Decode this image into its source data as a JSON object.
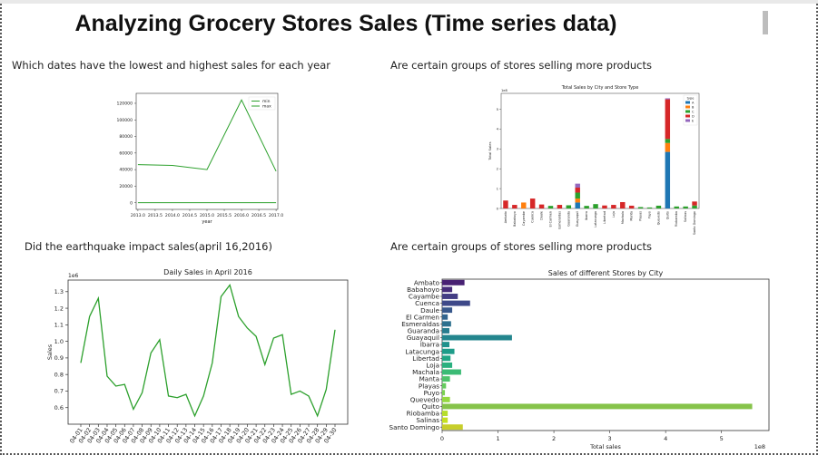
{
  "page": {
    "title": "Analyzing Grocery Stores Sales (Time series data)",
    "headings": {
      "q1": "Which dates have the lowest and highest sales for each year",
      "q2": "Are certain groups of stores selling more products",
      "q3": "Did the earthquake impact sales(april 16,2016)",
      "q4": "Are certain groups of stores selling more products"
    }
  },
  "colors": {
    "line": "#2ca02c",
    "axis": "#333333"
  },
  "chart_data": [
    {
      "id": "minmax",
      "type": "line",
      "title": "",
      "xlabel": "year",
      "ylabel": "",
      "xlim": [
        2012.95,
        2017.05
      ],
      "ylim": [
        -8000,
        132000
      ],
      "xticks": [
        2013.0,
        2013.5,
        2014.0,
        2014.5,
        2015.0,
        2015.5,
        2016.0,
        2016.5,
        2017.0
      ],
      "xtick_labels": [
        "2013.0",
        "2013.5",
        "2014.0",
        "2014.5",
        "2015.0",
        "2015.5",
        "2016.0",
        "2016.5",
        "2017.0"
      ],
      "yticks": [
        0,
        20000,
        40000,
        60000,
        80000,
        100000,
        120000
      ],
      "ytick_labels": [
        "0",
        "20000",
        "40000",
        "60000",
        "80000",
        "100000",
        "120000"
      ],
      "legend": "top-right",
      "series": [
        {
          "name": "min",
          "x": [
            2013,
            2014,
            2015,
            2016,
            2017
          ],
          "values": [
            0,
            0,
            0,
            0,
            0
          ],
          "color": "#2ca02c"
        },
        {
          "name": "max",
          "x": [
            2013,
            2014,
            2015,
            2016,
            2017
          ],
          "values": [
            46000,
            45000,
            40000,
            124000,
            38000
          ],
          "color": "#2ca02c"
        }
      ]
    },
    {
      "id": "stacked",
      "type": "bar",
      "title": "Total Sales by City and Store Type",
      "xlabel": "",
      "ylabel": "Total Sales",
      "offset_label": "1e8",
      "ylim": [
        0,
        5.8
      ],
      "yticks": [
        0,
        1,
        2,
        3,
        4,
        5
      ],
      "ytick_labels": [
        "0",
        "1",
        "2",
        "3",
        "4",
        "5"
      ],
      "legend": "top-right",
      "legend_title": "type",
      "series_names": [
        "A",
        "B",
        "C",
        "D",
        "E"
      ],
      "series_colors": [
        "#1f77b4",
        "#ff7f0e",
        "#2ca02c",
        "#d62728",
        "#9467bd"
      ],
      "categories": [
        "Ambato",
        "Babahoyo",
        "Cayambe",
        "Cuenca",
        "Daule",
        "El Carmen",
        "Esmeraldas",
        "Guaranda",
        "Guayaquil",
        "Ibarra",
        "Latacunga",
        "Libertad",
        "Loja",
        "Machala",
        "Manta",
        "Playas",
        "Puyo",
        "Quevedo",
        "Quito",
        "Riobamba",
        "Salinas",
        "Santo Domingo"
      ],
      "stacks": [
        [
          0,
          0,
          0,
          0.4,
          0
        ],
        [
          0,
          0,
          0,
          0.18,
          0
        ],
        [
          0,
          0.3,
          0,
          0,
          0
        ],
        [
          0,
          0,
          0,
          0.5,
          0
        ],
        [
          0,
          0,
          0,
          0.2,
          0
        ],
        [
          0,
          0,
          0.13,
          0,
          0
        ],
        [
          0,
          0,
          0,
          0.18,
          0
        ],
        [
          0,
          0,
          0.16,
          0,
          0
        ],
        [
          0.3,
          0.2,
          0.3,
          0.25,
          0.2
        ],
        [
          0,
          0,
          0.13,
          0,
          0
        ],
        [
          0,
          0,
          0.22,
          0,
          0
        ],
        [
          0,
          0,
          0,
          0.15,
          0
        ],
        [
          0,
          0,
          0,
          0.18,
          0
        ],
        [
          0,
          0,
          0,
          0.32,
          0
        ],
        [
          0,
          0,
          0,
          0.14,
          0
        ],
        [
          0,
          0,
          0.07,
          0,
          0
        ],
        [
          0,
          0,
          0.05,
          0,
          0
        ],
        [
          0,
          0,
          0.14,
          0,
          0
        ],
        [
          2.85,
          0.45,
          0.2,
          2.0,
          0.05
        ],
        [
          0,
          0,
          0.1,
          0,
          0
        ],
        [
          0,
          0,
          0.1,
          0,
          0
        ],
        [
          0,
          0,
          0.15,
          0.2,
          0
        ]
      ]
    },
    {
      "id": "april",
      "type": "line",
      "title": "Daily Sales in April 2016",
      "xlabel": "",
      "ylabel": "Sales",
      "offset_label": "1e6",
      "ylim": [
        0.5,
        1.37
      ],
      "yticks": [
        0.6,
        0.7,
        0.8,
        0.9,
        1.0,
        1.1,
        1.2,
        1.3
      ],
      "ytick_labels": [
        "0.6",
        "0.7",
        "0.8",
        "0.9",
        "1.0",
        "1.1",
        "1.2",
        "1.3"
      ],
      "categories": [
        "04-01",
        "04-02",
        "04-03",
        "04-04",
        "04-05",
        "04-06",
        "04-07",
        "04-08",
        "04-09",
        "04-10",
        "04-11",
        "04-12",
        "04-13",
        "04-14",
        "04-15",
        "04-16",
        "04-17",
        "04-18",
        "04-19",
        "04-20",
        "04-21",
        "04-22",
        "04-23",
        "04-24",
        "04-25",
        "04-26",
        "04-27",
        "04-28",
        "04-29",
        "04-30"
      ],
      "values": [
        0.87,
        1.15,
        1.26,
        0.79,
        0.73,
        0.74,
        0.59,
        0.69,
        0.93,
        1.01,
        0.67,
        0.66,
        0.68,
        0.55,
        0.67,
        0.87,
        1.27,
        1.34,
        1.15,
        1.08,
        1.03,
        0.86,
        1.02,
        1.04,
        0.68,
        0.7,
        0.67,
        0.55,
        0.71,
        1.07
      ],
      "color": "#2ca02c"
    },
    {
      "id": "cities",
      "type": "bar",
      "orientation": "horizontal",
      "title": "Sales of different Stores by City",
      "xlabel": "Total sales",
      "ylabel": "",
      "offset_label": "1e8",
      "xlim": [
        0,
        5.85
      ],
      "xticks": [
        0,
        1,
        2,
        3,
        4,
        5
      ],
      "xtick_labels": [
        "0",
        "1",
        "2",
        "3",
        "4",
        "5"
      ],
      "categories": [
        "Ambato",
        "Babahoyo",
        "Cayambe",
        "Cuenca",
        "Daule",
        "El Carmen",
        "Esmeraldas",
        "Guaranda",
        "Guayaquil",
        "Ibarra",
        "Latacunga",
        "Libertad",
        "Loja",
        "Machala",
        "Manta",
        "Playas",
        "Puyo",
        "Quevedo",
        "Quito",
        "Riobamba",
        "Salinas",
        "Santo Domingo"
      ],
      "values": [
        0.4,
        0.18,
        0.28,
        0.5,
        0.18,
        0.1,
        0.16,
        0.13,
        1.25,
        0.13,
        0.22,
        0.15,
        0.18,
        0.34,
        0.14,
        0.07,
        0.05,
        0.14,
        5.55,
        0.1,
        0.1,
        0.37
      ],
      "colors": [
        "#482173",
        "#472d7b",
        "#433d84",
        "#3e4989",
        "#38588c",
        "#32648e",
        "#2d708e",
        "#287c8e",
        "#24868e",
        "#20928c",
        "#1e9c89",
        "#21a685",
        "#2ab07f",
        "#3bbb75",
        "#4ec36b",
        "#65cb5e",
        "#7ad151",
        "#95d840",
        "#86c34a",
        "#b6de2b",
        "#c5e021",
        "#c7ce2b"
      ]
    }
  ]
}
